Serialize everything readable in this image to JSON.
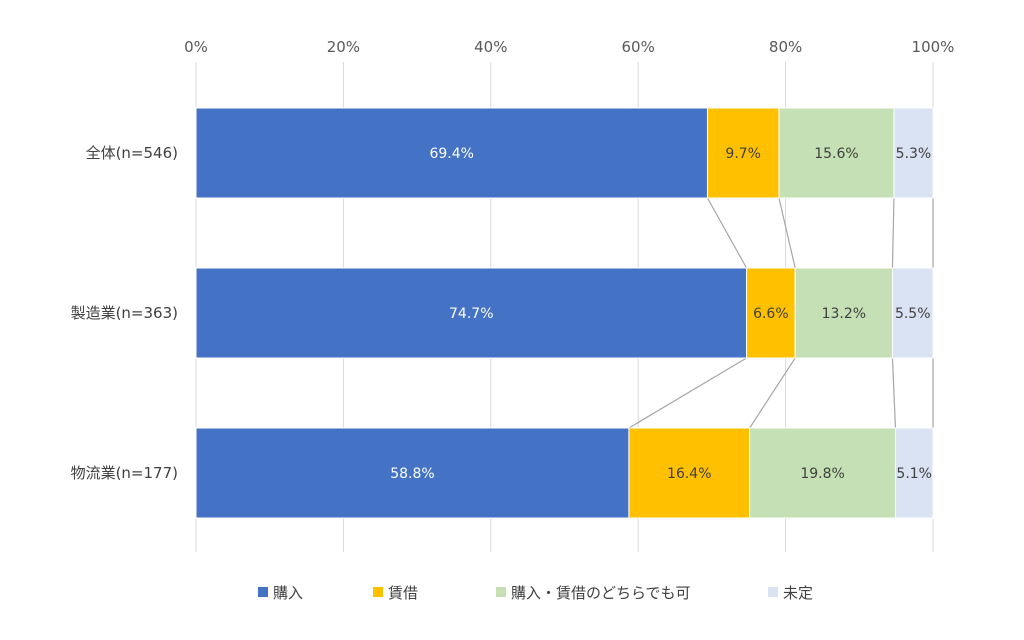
{
  "chart_data": {
    "type": "bar",
    "orientation": "horizontal",
    "stacked": "percent",
    "categories": [
      "全体(n=546)",
      "製造業(n=363)",
      "物流業(n=177)"
    ],
    "series": [
      {
        "name": "購入",
        "color": "#4472C4",
        "label_color": "#ffffff",
        "values": [
          69.4,
          74.7,
          58.8
        ],
        "labels": [
          "69.4%",
          "74.7%",
          "58.8%"
        ]
      },
      {
        "name": "賃借",
        "color": "#FFC000",
        "label_color": "#404040",
        "values": [
          9.7,
          6.6,
          16.4
        ],
        "labels": [
          "9.7%",
          "6.6%",
          "16.4%"
        ]
      },
      {
        "name": "購入・賃借のどちらでも可",
        "color": "#C5E0B4",
        "label_color": "#404040",
        "values": [
          15.6,
          13.2,
          19.8
        ],
        "labels": [
          "15.6%",
          "13.2%",
          "19.8%"
        ]
      },
      {
        "name": "未定",
        "color": "#DAE3F3",
        "label_color": "#404040",
        "values": [
          5.3,
          5.5,
          5.1
        ],
        "labels": [
          "5.3%",
          "5.5%",
          "5.1%"
        ]
      }
    ],
    "x_ticks": [
      "0%",
      "20%",
      "40%",
      "60%",
      "80%",
      "100%"
    ],
    "xlim": [
      0,
      100
    ],
    "grid": true,
    "series_lines": true,
    "legend_position": "bottom"
  }
}
